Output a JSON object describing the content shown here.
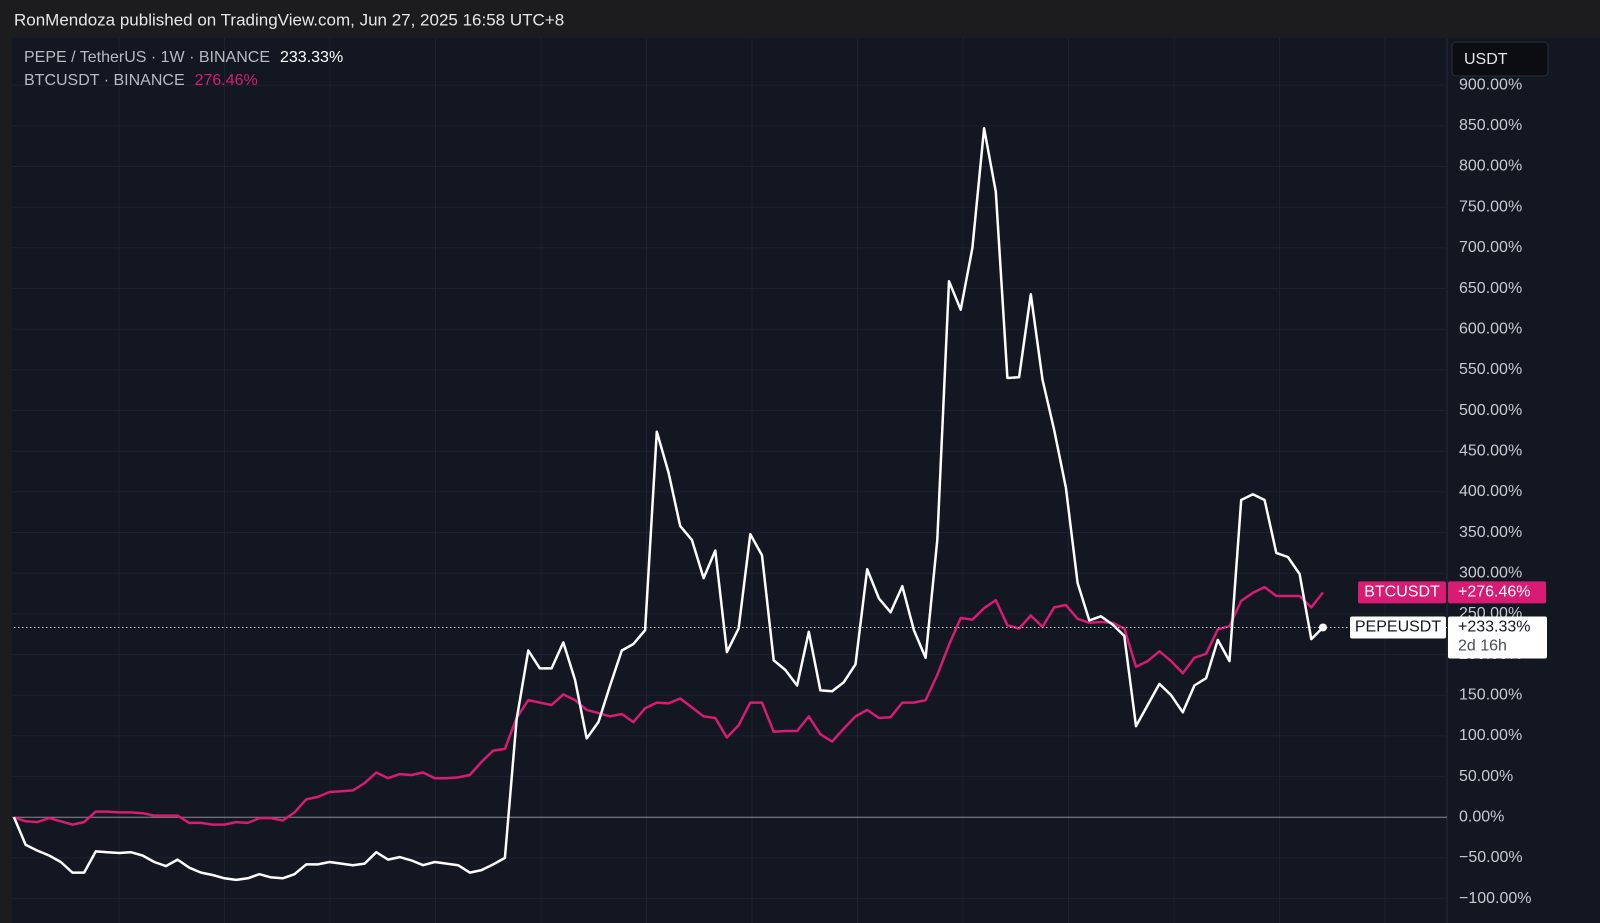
{
  "header": {
    "title": "RonMendoza published on TradingView.com, Jun 27, 2025 16:58 UTC+8"
  },
  "chart_data": {
    "type": "line",
    "currency": "USDT",
    "ylim": [
      -130,
      958
    ],
    "yticks": [
      {
        "value": -100,
        "label": "−100.00%"
      },
      {
        "value": -50,
        "label": "−50.00%"
      },
      {
        "value": 0,
        "label": "0.00%"
      },
      {
        "value": 50,
        "label": "50.00%"
      },
      {
        "value": 100,
        "label": "100.00%"
      },
      {
        "value": 150,
        "label": "150.00%"
      },
      {
        "value": 200,
        "label": "200.00%"
      },
      {
        "value": 250,
        "label": "250.00%"
      },
      {
        "value": 300,
        "label": "300.00%"
      },
      {
        "value": 350,
        "label": "350.00%"
      },
      {
        "value": 400,
        "label": "400.00%"
      },
      {
        "value": 450,
        "label": "450.00%"
      },
      {
        "value": 500,
        "label": "500.00%"
      },
      {
        "value": 550,
        "label": "550.00%"
      },
      {
        "value": 600,
        "label": "600.00%"
      },
      {
        "value": 650,
        "label": "650.00%"
      },
      {
        "value": 700,
        "label": "700.00%"
      },
      {
        "value": 750,
        "label": "750.00%"
      },
      {
        "value": 800,
        "label": "800.00%"
      },
      {
        "value": 850,
        "label": "850.00%"
      },
      {
        "value": 900,
        "label": "900.00%"
      }
    ],
    "grid": true,
    "series": [
      {
        "name": "PEPE / TetherUS · 1W · BINANCE",
        "short_name": "PEPEUSDT",
        "color": "#ffffff",
        "legend_label": "233.33%",
        "last_label": "+233.33%",
        "countdown": "2d 16h",
        "values": [
          0,
          -34,
          -41,
          -47,
          -55,
          -68,
          -68,
          -42,
          -43,
          -44,
          -43,
          -47,
          -55,
          -60,
          -52,
          -62,
          -68,
          -71,
          -75,
          -77,
          -75,
          -70,
          -74,
          -75,
          -70,
          -58,
          -58,
          -55,
          -57,
          -59,
          -57,
          -43,
          -52,
          -49,
          -53,
          -59,
          -55,
          -57,
          -59,
          -68,
          -65,
          -58,
          -50,
          120,
          205,
          183,
          183,
          215,
          169,
          97,
          117,
          162,
          205,
          213,
          230,
          474,
          424,
          358,
          341,
          294,
          328,
          203,
          232,
          348,
          322,
          193,
          181,
          162,
          228,
          156,
          155,
          166,
          188,
          305,
          269,
          252,
          284,
          230,
          196,
          341,
          659,
          624,
          700,
          847,
          769,
          540,
          541,
          643,
          538,
          476,
          405,
          288,
          242,
          247,
          237,
          223,
          112,
          138,
          164,
          150,
          129,
          162,
          171,
          218,
          192,
          390,
          397,
          390,
          325,
          320,
          299,
          219,
          233.33
        ]
      },
      {
        "name": "BTCUSDT · BINANCE",
        "short_name": "BTCUSDT",
        "color": "#d81b73",
        "legend_label": "276.46%",
        "last_label": "+276.46%",
        "values": [
          0,
          -5,
          -6,
          -1,
          -5,
          -9,
          -6,
          7,
          7,
          6,
          6,
          5,
          2,
          2,
          2,
          -7,
          -7,
          -9,
          -9,
          -6,
          -7,
          -1,
          -1,
          -4,
          6,
          22,
          25,
          31,
          32,
          33,
          42,
          55,
          48,
          53,
          52,
          55,
          48,
          48,
          49,
          52,
          68,
          82,
          84,
          122,
          144,
          141,
          138,
          151,
          144,
          132,
          128,
          124,
          127,
          117,
          134,
          141,
          140,
          146,
          135,
          124,
          122,
          98,
          113,
          141,
          141,
          105,
          106,
          106,
          124,
          102,
          93,
          109,
          124,
          132,
          122,
          123,
          141,
          141,
          144,
          175,
          212,
          245,
          243,
          257,
          267,
          236,
          232,
          248,
          234,
          258,
          261,
          244,
          239,
          240,
          239,
          232,
          185,
          192,
          204,
          192,
          177,
          196,
          201,
          231,
          235,
          266,
          276,
          283,
          272,
          272,
          272,
          258,
          276.46
        ]
      }
    ]
  }
}
